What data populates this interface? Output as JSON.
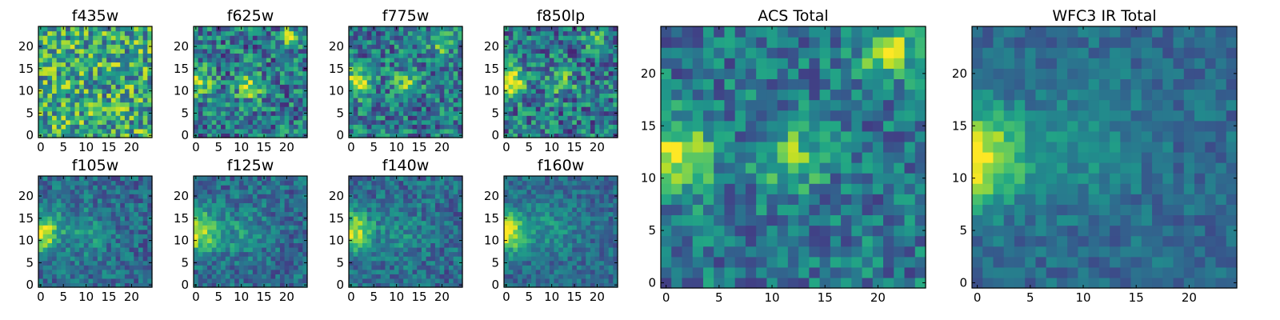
{
  "chart_data": [
    {
      "type": "heatmap",
      "title": "f435w",
      "grid": 25,
      "xticks": [
        "0",
        "5",
        "10",
        "15",
        "20"
      ],
      "yticks": [
        "0",
        "5",
        "10",
        "15",
        "20"
      ],
      "xlim": [
        0,
        24
      ],
      "ylim": [
        0,
        24
      ],
      "colormap": "viridis",
      "hotspots": [],
      "base": 0.6,
      "noise": 0.35
    },
    {
      "type": "heatmap",
      "title": "f625w",
      "grid": 25,
      "xticks": [
        "0",
        "5",
        "10",
        "15",
        "20"
      ],
      "yticks": [
        "0",
        "5",
        "10",
        "15",
        "20"
      ],
      "xlim": [
        0,
        24
      ],
      "ylim": [
        0,
        24
      ],
      "colormap": "viridis",
      "hotspots": [
        {
          "x": 1,
          "y": 12,
          "a": 0.45,
          "s": 2.2
        },
        {
          "x": 12,
          "y": 11,
          "a": 0.45,
          "s": 2.0
        },
        {
          "x": 21,
          "y": 22,
          "a": 0.5,
          "s": 1.6
        }
      ],
      "base": 0.4,
      "noise": 0.3
    },
    {
      "type": "heatmap",
      "title": "f775w",
      "grid": 25,
      "xticks": [
        "0",
        "5",
        "10",
        "15",
        "20"
      ],
      "yticks": [
        "0",
        "5",
        "10",
        "15",
        "20"
      ],
      "xlim": [
        0,
        24
      ],
      "ylim": [
        0,
        24
      ],
      "colormap": "viridis",
      "hotspots": [
        {
          "x": 1,
          "y": 12,
          "a": 0.55,
          "s": 2.4
        },
        {
          "x": 12,
          "y": 12,
          "a": 0.35,
          "s": 2.0
        },
        {
          "x": 20,
          "y": 21,
          "a": 0.4,
          "s": 1.8
        }
      ],
      "base": 0.4,
      "noise": 0.28
    },
    {
      "type": "heatmap",
      "title": "f850lp",
      "grid": 25,
      "xticks": [
        "0",
        "5",
        "10",
        "15",
        "20"
      ],
      "yticks": [
        "0",
        "5",
        "10",
        "15",
        "20"
      ],
      "xlim": [
        0,
        24
      ],
      "ylim": [
        0,
        24
      ],
      "colormap": "viridis",
      "hotspots": [
        {
          "x": 1,
          "y": 12,
          "a": 0.6,
          "s": 2.2
        },
        {
          "x": 12,
          "y": 12,
          "a": 0.3,
          "s": 2.0
        },
        {
          "x": 20,
          "y": 21,
          "a": 0.35,
          "s": 1.6
        }
      ],
      "base": 0.4,
      "noise": 0.3
    },
    {
      "type": "heatmap",
      "title": "f105w",
      "grid": 25,
      "xticks": [
        "0",
        "5",
        "10",
        "15",
        "20"
      ],
      "yticks": [
        "0",
        "5",
        "10",
        "15",
        "20"
      ],
      "xlim": [
        0,
        24
      ],
      "ylim": [
        0,
        24
      ],
      "colormap": "viridis",
      "hotspots": [
        {
          "x": 0,
          "y": 12,
          "a": 0.6,
          "s": 3.0
        },
        {
          "x": 10,
          "y": 12,
          "a": 0.15,
          "s": 4.0
        }
      ],
      "base": 0.35,
      "noise": 0.18
    },
    {
      "type": "heatmap",
      "title": "f125w",
      "grid": 25,
      "xticks": [
        "0",
        "5",
        "10",
        "15",
        "20"
      ],
      "yticks": [
        "0",
        "5",
        "10",
        "15",
        "20"
      ],
      "xlim": [
        0,
        24
      ],
      "ylim": [
        0,
        24
      ],
      "colormap": "viridis",
      "hotspots": [
        {
          "x": 0,
          "y": 12,
          "a": 0.6,
          "s": 3.2
        },
        {
          "x": 10,
          "y": 12,
          "a": 0.15,
          "s": 4.0
        }
      ],
      "base": 0.35,
      "noise": 0.18
    },
    {
      "type": "heatmap",
      "title": "f140w",
      "grid": 25,
      "xticks": [
        "0",
        "5",
        "10",
        "15",
        "20"
      ],
      "yticks": [
        "0",
        "5",
        "10",
        "15",
        "20"
      ],
      "xlim": [
        0,
        24
      ],
      "ylim": [
        0,
        24
      ],
      "colormap": "viridis",
      "hotspots": [
        {
          "x": 0,
          "y": 12,
          "a": 0.6,
          "s": 3.0
        },
        {
          "x": 11,
          "y": 12,
          "a": 0.12,
          "s": 4.0
        }
      ],
      "base": 0.35,
      "noise": 0.18
    },
    {
      "type": "heatmap",
      "title": "f160w",
      "grid": 25,
      "xticks": [
        "0",
        "5",
        "10",
        "15",
        "20"
      ],
      "yticks": [
        "0",
        "5",
        "10",
        "15",
        "20"
      ],
      "xlim": [
        0,
        24
      ],
      "ylim": [
        0,
        24
      ],
      "colormap": "viridis",
      "hotspots": [
        {
          "x": 0,
          "y": 12,
          "a": 0.65,
          "s": 3.0
        },
        {
          "x": 10,
          "y": 13,
          "a": 0.15,
          "s": 4.0
        }
      ],
      "base": 0.35,
      "noise": 0.15
    },
    {
      "type": "heatmap",
      "title": "ACS Total",
      "grid": 25,
      "xticks": [
        "0",
        "5",
        "10",
        "15",
        "20"
      ],
      "yticks": [
        "0",
        "5",
        "10",
        "15",
        "20"
      ],
      "xlim": [
        0,
        24
      ],
      "ylim": [
        0,
        24
      ],
      "colormap": "viridis",
      "hotspots": [
        {
          "x": 1,
          "y": 12,
          "a": 0.55,
          "s": 2.4
        },
        {
          "x": 12,
          "y": 12,
          "a": 0.4,
          "s": 2.0
        },
        {
          "x": 21,
          "y": 22,
          "a": 0.55,
          "s": 1.6
        }
      ],
      "base": 0.4,
      "noise": 0.22
    },
    {
      "type": "heatmap",
      "title": "WFC3 IR Total",
      "grid": 25,
      "xticks": [
        "0",
        "5",
        "10",
        "15",
        "20"
      ],
      "yticks": [
        "0",
        "5",
        "10",
        "15",
        "20"
      ],
      "xlim": [
        0,
        24
      ],
      "ylim": [
        0,
        24
      ],
      "colormap": "viridis",
      "hotspots": [
        {
          "x": 0,
          "y": 12,
          "a": 0.65,
          "s": 3.0
        },
        {
          "x": 10,
          "y": 13,
          "a": 0.15,
          "s": 4.0
        }
      ],
      "base": 0.35,
      "noise": 0.12
    }
  ]
}
